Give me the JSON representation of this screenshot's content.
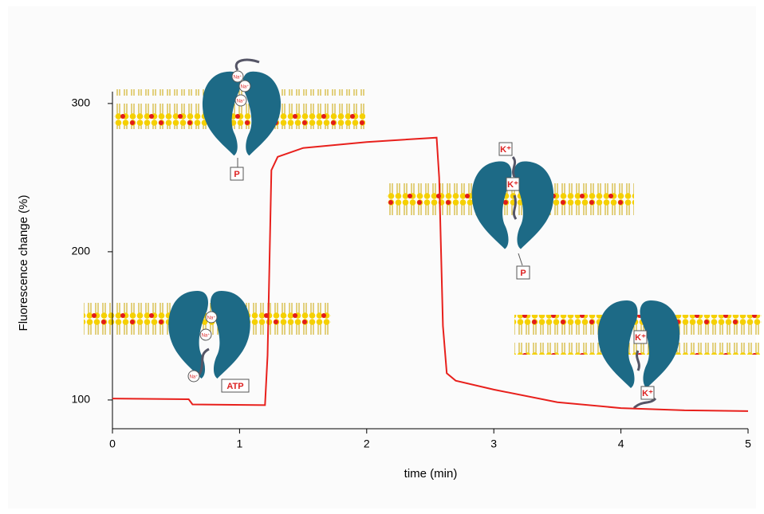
{
  "chart_data": {
    "type": "line",
    "x_label": "time (min)",
    "y_label": "Fluorescence change (%)",
    "x": [
      0,
      0.6,
      0.63,
      1.2,
      1.22,
      1.25,
      1.3,
      1.5,
      2,
      2.55,
      2.57,
      2.6,
      2.63,
      2.7,
      3,
      3.5,
      4,
      4.5,
      5
    ],
    "values": [
      101,
      100.5,
      97,
      96.5,
      130,
      255,
      264,
      270,
      274,
      277,
      250,
      150,
      118,
      113,
      107,
      98.5,
      94.5,
      93,
      92.5
    ],
    "color": "#e8201c",
    "xlim": [
      0,
      5
    ],
    "xticks": [
      0,
      1,
      2,
      3,
      4,
      5
    ],
    "ylim": [
      80.6,
      308
    ],
    "yticks": [
      100,
      200,
      300
    ],
    "grid": false,
    "annotations": [
      "P",
      "ATP",
      "P",
      "K⁺",
      "K⁺",
      "K⁺",
      "K⁺",
      "Na⁺",
      "Na⁺",
      "Na⁺",
      "Na⁺",
      "Na⁺",
      "Na⁺"
    ]
  }
}
